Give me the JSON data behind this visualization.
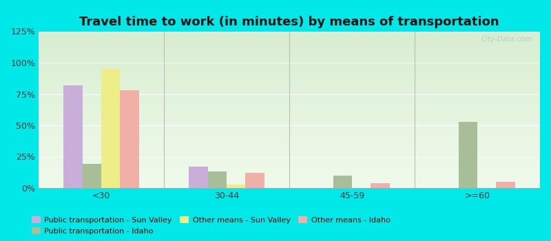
{
  "title": "Travel time to work (in minutes) by means of transportation",
  "categories": [
    "<30",
    "30-44",
    "45-59",
    ">=60"
  ],
  "series_order": [
    "Public transportation - Sun Valley",
    "Public transportation - Idaho",
    "Other means - Sun Valley",
    "Other means - Idaho"
  ],
  "series": {
    "Public transportation - Sun Valley": [
      82,
      17,
      0,
      0
    ],
    "Public transportation - Idaho": [
      19,
      13,
      10,
      53
    ],
    "Other means - Sun Valley": [
      95,
      3,
      0,
      0
    ],
    "Other means - Idaho": [
      78,
      12,
      4,
      5
    ]
  },
  "colors": {
    "Public transportation - Sun Valley": "#c8aed8",
    "Public transportation - Idaho": "#a8be98",
    "Other means - Sun Valley": "#eeee88",
    "Other means - Idaho": "#f0b0a8"
  },
  "legend_order": [
    "Public transportation - Sun Valley",
    "Public transportation - Idaho",
    "Other means - Sun Valley",
    "Other means - Idaho"
  ],
  "ylim": [
    0,
    125
  ],
  "yticks": [
    0,
    25,
    50,
    75,
    100,
    125
  ],
  "ytick_labels": [
    "0%",
    "25%",
    "50%",
    "75%",
    "100%",
    "125%"
  ],
  "background_color": "#00e8e8",
  "title_fontsize": 13,
  "watermark": "City-Data.com"
}
